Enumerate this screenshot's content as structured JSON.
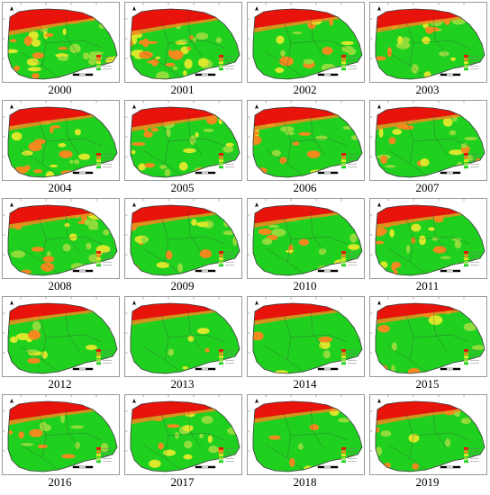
{
  "figure": {
    "panels": [
      {
        "year": "2000",
        "red": 0.9,
        "orange": 0.8,
        "yellow": 0.55,
        "green": 0.15
      },
      {
        "year": "2001",
        "red": 0.9,
        "orange": 0.8,
        "yellow": 0.55,
        "green": 0.18
      },
      {
        "year": "2002",
        "red": 0.75,
        "orange": 0.45,
        "yellow": 0.3,
        "green": 0.5
      },
      {
        "year": "2003",
        "red": 0.75,
        "orange": 0.45,
        "yellow": 0.3,
        "green": 0.5
      },
      {
        "year": "2004",
        "red": 0.75,
        "orange": 0.4,
        "yellow": 0.35,
        "green": 0.55
      },
      {
        "year": "2005",
        "red": 0.8,
        "orange": 0.55,
        "yellow": 0.45,
        "green": 0.35
      },
      {
        "year": "2006",
        "red": 0.75,
        "orange": 0.45,
        "yellow": 0.3,
        "green": 0.5
      },
      {
        "year": "2007",
        "red": 0.7,
        "orange": 0.35,
        "yellow": 0.25,
        "green": 0.6
      },
      {
        "year": "2008",
        "red": 0.75,
        "orange": 0.45,
        "yellow": 0.3,
        "green": 0.5
      },
      {
        "year": "2009",
        "red": 0.7,
        "orange": 0.35,
        "yellow": 0.25,
        "green": 0.6
      },
      {
        "year": "2010",
        "red": 0.7,
        "orange": 0.3,
        "yellow": 0.2,
        "green": 0.65
      },
      {
        "year": "2011",
        "red": 0.75,
        "orange": 0.35,
        "yellow": 0.25,
        "green": 0.6
      },
      {
        "year": "2012",
        "red": 0.65,
        "orange": 0.15,
        "yellow": 0.1,
        "green": 0.85
      },
      {
        "year": "2013",
        "red": 0.65,
        "orange": 0.15,
        "yellow": 0.15,
        "green": 0.8
      },
      {
        "year": "2014",
        "red": 0.65,
        "orange": 0.15,
        "yellow": 0.1,
        "green": 0.85
      },
      {
        "year": "2015",
        "red": 0.6,
        "orange": 0.2,
        "yellow": 0.15,
        "green": 0.8
      },
      {
        "year": "2016",
        "red": 0.75,
        "orange": 0.2,
        "yellow": 0.1,
        "green": 0.8
      },
      {
        "year": "2017",
        "red": 0.7,
        "orange": 0.3,
        "yellow": 0.2,
        "green": 0.65
      },
      {
        "year": "2018",
        "red": 0.65,
        "orange": 0.15,
        "yellow": 0.1,
        "green": 0.85
      },
      {
        "year": "2019",
        "red": 0.75,
        "orange": 0.25,
        "yellow": 0.15,
        "green": 0.75
      }
    ],
    "colors": {
      "class1": "#e8140c",
      "class2": "#f28a1e",
      "class3": "#d9e82a",
      "class4": "#8fdc3a",
      "class5": "#1fd01f",
      "outline": "#3a3a3a",
      "frame": "#9a9a9a"
    }
  }
}
